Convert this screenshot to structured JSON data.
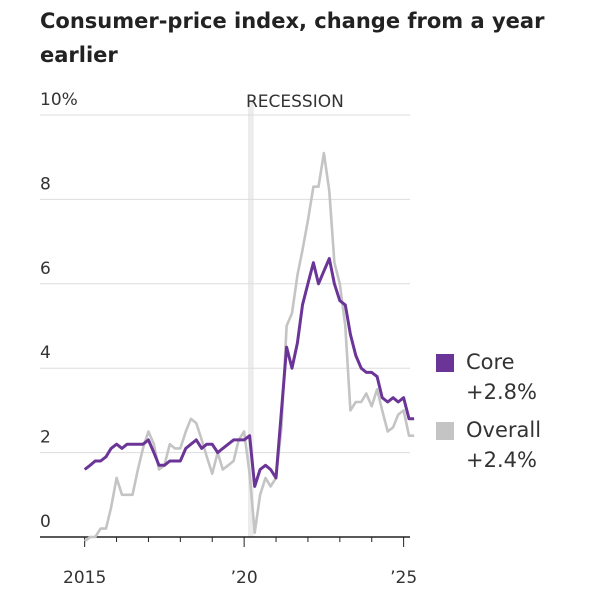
{
  "chart_data": {
    "type": "line",
    "title": "Consumer-price index, change from a year earlier",
    "x": [
      2015.0,
      2015.17,
      2015.33,
      2015.5,
      2015.67,
      2015.83,
      2016.0,
      2016.17,
      2016.33,
      2016.5,
      2016.67,
      2016.83,
      2017.0,
      2017.17,
      2017.33,
      2017.5,
      2017.67,
      2017.83,
      2018.0,
      2018.17,
      2018.33,
      2018.5,
      2018.67,
      2018.83,
      2019.0,
      2019.17,
      2019.33,
      2019.5,
      2019.67,
      2019.83,
      2020.0,
      2020.17,
      2020.33,
      2020.5,
      2020.67,
      2020.83,
      2021.0,
      2021.17,
      2021.33,
      2021.5,
      2021.67,
      2021.83,
      2022.0,
      2022.17,
      2022.33,
      2022.5,
      2022.67,
      2022.83,
      2023.0,
      2023.17,
      2023.33,
      2023.5,
      2023.67,
      2023.83,
      2024.0,
      2024.17,
      2024.33,
      2024.5,
      2024.67,
      2024.83,
      2025.0,
      2025.17,
      2025.33
    ],
    "series": [
      {
        "name": "Core",
        "label": "+2.8%",
        "color": "#6b3598",
        "values": [
          1.6,
          1.7,
          1.8,
          1.8,
          1.9,
          2.1,
          2.2,
          2.1,
          2.2,
          2.2,
          2.2,
          2.2,
          2.3,
          2.0,
          1.7,
          1.7,
          1.8,
          1.8,
          1.8,
          2.1,
          2.2,
          2.3,
          2.1,
          2.2,
          2.2,
          2.0,
          2.1,
          2.2,
          2.3,
          2.3,
          2.3,
          2.4,
          1.2,
          1.6,
          1.7,
          1.6,
          1.4,
          3.0,
          4.5,
          4.0,
          4.6,
          5.5,
          6.0,
          6.5,
          6.0,
          6.3,
          6.6,
          6.0,
          5.6,
          5.5,
          4.8,
          4.3,
          4.0,
          3.9,
          3.9,
          3.8,
          3.3,
          3.2,
          3.3,
          3.2,
          3.3,
          2.8,
          2.8
        ]
      },
      {
        "name": "Overall",
        "label": "+2.4%",
        "color": "#c4c4c4",
        "values": [
          -0.1,
          0.0,
          0.0,
          0.2,
          0.2,
          0.7,
          1.4,
          1.0,
          1.0,
          1.0,
          1.6,
          2.1,
          2.5,
          2.2,
          1.6,
          1.7,
          2.2,
          2.1,
          2.1,
          2.5,
          2.8,
          2.7,
          2.3,
          1.9,
          1.5,
          2.0,
          1.6,
          1.7,
          1.8,
          2.3,
          2.5,
          1.5,
          0.1,
          1.0,
          1.4,
          1.2,
          1.4,
          2.6,
          5.0,
          5.3,
          6.2,
          6.8,
          7.5,
          8.3,
          8.3,
          9.1,
          8.2,
          6.5,
          6.0,
          5.0,
          3.0,
          3.2,
          3.2,
          3.4,
          3.1,
          3.5,
          3.0,
          2.5,
          2.6,
          2.9,
          3.0,
          2.4,
          2.4
        ]
      }
    ],
    "xlim": [
      2013.6,
      2025.2
    ],
    "xticks": [
      2015,
      {
        "value": 2020,
        "label": "’20"
      },
      {
        "value": 2025,
        "label": "’25"
      }
    ],
    "xminorticks": [
      2016,
      2017,
      2018,
      2019,
      2021,
      2022,
      2023,
      2024
    ],
    "ylim": [
      0,
      10
    ],
    "yticks": [
      0,
      2,
      4,
      6,
      8,
      {
        "value": 10,
        "label": "10%"
      }
    ],
    "grid": true,
    "recession": {
      "label": "RECESSION",
      "start": 2020.12,
      "end": 2020.3
    },
    "legend": "right"
  }
}
